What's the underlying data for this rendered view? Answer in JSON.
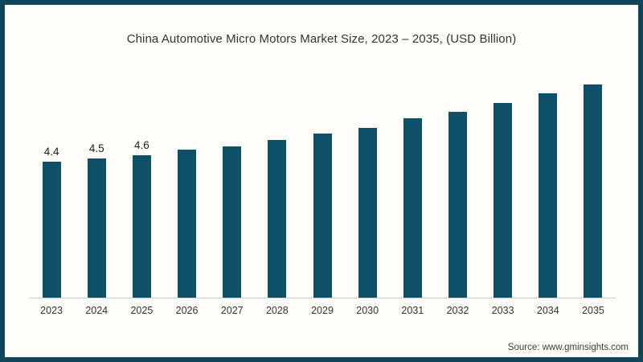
{
  "page": {
    "background_color": "#fffefb",
    "frame_color": "#114559"
  },
  "header": {
    "title": "China Automotive Micro Motors Market Size, 2023 – 2035, (USD Billion)"
  },
  "footer": {
    "source": "Source: www.gminsights.com"
  },
  "chart_data": {
    "type": "bar",
    "title": "China Automotive Micro Motors Market Size, 2023 – 2035, (USD Billion)",
    "categories": [
      "2023",
      "2024",
      "2025",
      "2026",
      "2027",
      "2028",
      "2029",
      "2030",
      "2031",
      "2032",
      "2033",
      "2034",
      "2035"
    ],
    "values": [
      4.4,
      4.5,
      4.6,
      4.8,
      4.9,
      5.1,
      5.3,
      5.5,
      5.8,
      6.0,
      6.3,
      6.6,
      6.9
    ],
    "data_labels": [
      "4.4",
      "4.5",
      "4.6",
      "",
      "",
      "",
      "",
      "",
      "",
      "",
      "",
      "",
      ""
    ],
    "xlabel": "",
    "ylabel": "",
    "ylim": [
      0,
      7.6
    ],
    "grid": false,
    "legend": false,
    "bar_color": "#0e5068",
    "axis_line_color": "#cccccc",
    "source": "Source: www.gminsights.com"
  }
}
